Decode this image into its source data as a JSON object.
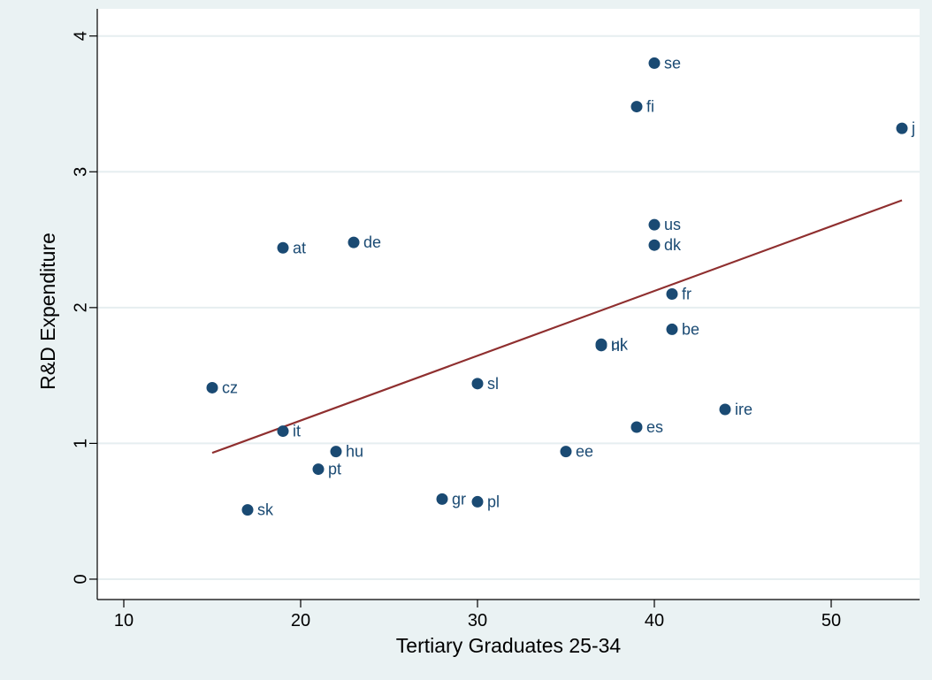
{
  "chart_data": {
    "type": "scatter",
    "xlabel": "Tertiary Graduates 25-34",
    "ylabel": "R&D Expenditure",
    "xlim": [
      8.5,
      55.0
    ],
    "ylim": [
      -0.15,
      4.2
    ],
    "xticks": [
      10,
      20,
      30,
      40,
      50
    ],
    "yticks": [
      0,
      1,
      2,
      3,
      4
    ],
    "grid": true,
    "legend": "none",
    "colors": {
      "marker": "#1a4a73",
      "label": "#1a4a73",
      "fit": "#8f2f2f",
      "grid": "#e6eef0",
      "background": "#eaf2f3"
    },
    "points": [
      {
        "label": "se",
        "x": 40,
        "y": 3.8
      },
      {
        "label": "fi",
        "x": 39,
        "y": 3.48
      },
      {
        "label": "j",
        "x": 54,
        "y": 3.32
      },
      {
        "label": "us",
        "x": 40,
        "y": 2.61
      },
      {
        "label": "dk",
        "x": 40,
        "y": 2.46
      },
      {
        "label": "de",
        "x": 23,
        "y": 2.48
      },
      {
        "label": "at",
        "x": 19,
        "y": 2.44
      },
      {
        "label": "fr",
        "x": 41,
        "y": 2.1
      },
      {
        "label": "be",
        "x": 41,
        "y": 1.84
      },
      {
        "label": "uk",
        "x": 37,
        "y": 1.73
      },
      {
        "label": "nl",
        "x": 37,
        "y": 1.72
      },
      {
        "label": "sl",
        "x": 30,
        "y": 1.44
      },
      {
        "label": "cz",
        "x": 15,
        "y": 1.41
      },
      {
        "label": "ire",
        "x": 44,
        "y": 1.25
      },
      {
        "label": "es",
        "x": 39,
        "y": 1.12
      },
      {
        "label": "it",
        "x": 19,
        "y": 1.09
      },
      {
        "label": "hu",
        "x": 22,
        "y": 0.94
      },
      {
        "label": "ee",
        "x": 35,
        "y": 0.94
      },
      {
        "label": "pt",
        "x": 21,
        "y": 0.81
      },
      {
        "label": "gr",
        "x": 28,
        "y": 0.59
      },
      {
        "label": "pl",
        "x": 30,
        "y": 0.57
      },
      {
        "label": "sk",
        "x": 17,
        "y": 0.51
      }
    ],
    "fit_line": {
      "x": [
        15,
        54
      ],
      "y": [
        0.93,
        2.79
      ]
    }
  }
}
